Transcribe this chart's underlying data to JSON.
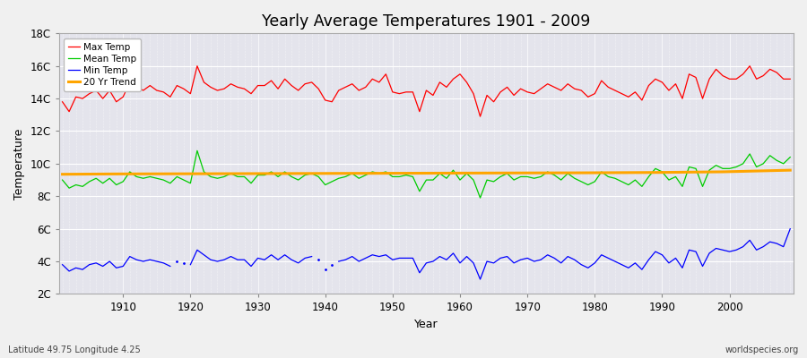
{
  "title": "Yearly Average Temperatures 1901 - 2009",
  "xlabel": "Year",
  "ylabel": "Temperature",
  "subtitle_left": "Latitude 49.75 Longitude 4.25",
  "subtitle_right": "worldspecies.org",
  "years": [
    1901,
    1902,
    1903,
    1904,
    1905,
    1906,
    1907,
    1908,
    1909,
    1910,
    1911,
    1912,
    1913,
    1914,
    1915,
    1916,
    1917,
    1918,
    1919,
    1920,
    1921,
    1922,
    1923,
    1924,
    1925,
    1926,
    1927,
    1928,
    1929,
    1930,
    1931,
    1932,
    1933,
    1934,
    1935,
    1936,
    1937,
    1938,
    1939,
    1940,
    1941,
    1942,
    1943,
    1944,
    1945,
    1946,
    1947,
    1948,
    1949,
    1950,
    1951,
    1952,
    1953,
    1954,
    1955,
    1956,
    1957,
    1958,
    1959,
    1960,
    1961,
    1962,
    1963,
    1964,
    1965,
    1966,
    1967,
    1968,
    1969,
    1970,
    1971,
    1972,
    1973,
    1974,
    1975,
    1976,
    1977,
    1978,
    1979,
    1980,
    1981,
    1982,
    1983,
    1984,
    1985,
    1986,
    1987,
    1988,
    1989,
    1990,
    1991,
    1992,
    1993,
    1994,
    1995,
    1996,
    1997,
    1998,
    1999,
    2000,
    2001,
    2002,
    2003,
    2004,
    2005,
    2006,
    2007,
    2008,
    2009
  ],
  "max_temp": [
    13.8,
    13.2,
    14.1,
    14.0,
    14.3,
    14.5,
    14.0,
    14.5,
    13.8,
    14.1,
    15.0,
    14.7,
    14.5,
    14.8,
    14.5,
    14.4,
    14.1,
    14.8,
    14.6,
    14.3,
    16.0,
    15.0,
    14.7,
    14.5,
    14.6,
    14.9,
    14.7,
    14.6,
    14.3,
    14.8,
    14.8,
    15.1,
    14.6,
    15.2,
    14.8,
    14.5,
    14.9,
    15.0,
    14.6,
    13.9,
    13.8,
    14.5,
    14.7,
    14.9,
    14.5,
    14.7,
    15.2,
    15.0,
    15.5,
    14.4,
    14.3,
    14.4,
    14.4,
    13.2,
    14.5,
    14.2,
    15.0,
    14.7,
    15.2,
    15.5,
    15.0,
    14.3,
    12.9,
    14.2,
    13.8,
    14.4,
    14.7,
    14.2,
    14.6,
    14.4,
    14.3,
    14.6,
    14.9,
    14.7,
    14.5,
    14.9,
    14.6,
    14.5,
    14.1,
    14.3,
    15.1,
    14.7,
    14.5,
    14.3,
    14.1,
    14.4,
    13.9,
    14.8,
    15.2,
    15.0,
    14.5,
    14.9,
    14.0,
    15.5,
    15.3,
    14.0,
    15.2,
    15.8,
    15.4,
    15.2,
    15.2,
    15.5,
    16.0,
    15.2,
    15.4,
    15.8,
    15.6,
    15.2,
    15.2
  ],
  "mean_temp": [
    9.0,
    8.5,
    8.7,
    8.6,
    8.9,
    9.1,
    8.8,
    9.1,
    8.7,
    8.9,
    9.5,
    9.2,
    9.1,
    9.2,
    9.1,
    9.0,
    8.8,
    9.2,
    9.0,
    8.8,
    10.8,
    9.5,
    9.2,
    9.1,
    9.2,
    9.4,
    9.2,
    9.2,
    8.8,
    9.3,
    9.3,
    9.5,
    9.2,
    9.5,
    9.2,
    9.0,
    9.3,
    9.4,
    9.2,
    8.7,
    8.9,
    9.1,
    9.2,
    9.4,
    9.1,
    9.3,
    9.5,
    9.4,
    9.5,
    9.2,
    9.2,
    9.3,
    9.2,
    8.3,
    9.0,
    9.0,
    9.4,
    9.1,
    9.6,
    9.0,
    9.4,
    9.0,
    7.9,
    9.0,
    8.9,
    9.2,
    9.4,
    9.0,
    9.2,
    9.2,
    9.1,
    9.2,
    9.5,
    9.3,
    9.0,
    9.4,
    9.1,
    8.9,
    8.7,
    8.9,
    9.5,
    9.2,
    9.1,
    8.9,
    8.7,
    9.0,
    8.6,
    9.2,
    9.7,
    9.5,
    9.0,
    9.2,
    8.6,
    9.8,
    9.7,
    8.6,
    9.6,
    9.9,
    9.7,
    9.7,
    9.8,
    10.0,
    10.6,
    9.8,
    10.0,
    10.5,
    10.2,
    10.0,
    10.4
  ],
  "min_temp": [
    3.8,
    3.4,
    3.6,
    3.5,
    3.8,
    3.9,
    3.7,
    4.0,
    3.6,
    3.7,
    4.3,
    4.1,
    4.0,
    4.1,
    4.0,
    3.9,
    3.7,
    4.0,
    3.9,
    3.8,
    4.7,
    4.4,
    4.1,
    4.0,
    4.1,
    4.3,
    4.1,
    4.1,
    3.7,
    4.2,
    4.1,
    4.4,
    4.1,
    4.4,
    4.1,
    3.9,
    4.2,
    4.3,
    4.1,
    3.5,
    3.8,
    4.0,
    4.1,
    4.3,
    4.0,
    4.2,
    4.4,
    4.3,
    4.4,
    4.1,
    4.2,
    4.2,
    4.2,
    3.3,
    3.9,
    4.0,
    4.3,
    4.1,
    4.5,
    3.9,
    4.3,
    3.9,
    2.9,
    4.0,
    3.9,
    4.2,
    4.3,
    3.9,
    4.1,
    4.2,
    4.0,
    4.1,
    4.4,
    4.2,
    3.9,
    4.3,
    4.1,
    3.8,
    3.6,
    3.9,
    4.4,
    4.2,
    4.0,
    3.8,
    3.6,
    3.9,
    3.5,
    4.1,
    4.6,
    4.4,
    3.9,
    4.2,
    3.6,
    4.7,
    4.6,
    3.7,
    4.5,
    4.8,
    4.7,
    4.6,
    4.7,
    4.9,
    5.3,
    4.7,
    4.9,
    5.2,
    5.1,
    4.9,
    6.0
  ],
  "trend_x": [
    1901,
    1909,
    1919,
    1929,
    1939,
    1949,
    1959,
    1969,
    1979,
    1989,
    1999,
    2009
  ],
  "trend_y": [
    9.35,
    9.37,
    9.38,
    9.39,
    9.4,
    9.41,
    9.42,
    9.43,
    9.44,
    9.46,
    9.5,
    9.6
  ],
  "gap_years_min": [
    1918,
    1919,
    1939,
    1940,
    1941
  ],
  "ylim": [
    2,
    18
  ],
  "yticks": [
    2,
    4,
    6,
    8,
    10,
    12,
    14,
    16,
    18
  ],
  "ytick_labels": [
    "2C",
    "4C",
    "6C",
    "8C",
    "10C",
    "12C",
    "14C",
    "16C",
    "18C"
  ],
  "xticks": [
    1910,
    1920,
    1930,
    1940,
    1950,
    1960,
    1970,
    1980,
    1990,
    2000
  ],
  "max_color": "#ff0000",
  "mean_color": "#00cc00",
  "min_color": "#0000ff",
  "trend_color": "#ffa500",
  "bg_color": "#e4e4ec",
  "grid_color": "#ffffff",
  "legend_labels": [
    "Max Temp",
    "Mean Temp",
    "Min Temp",
    "20 Yr Trend"
  ]
}
